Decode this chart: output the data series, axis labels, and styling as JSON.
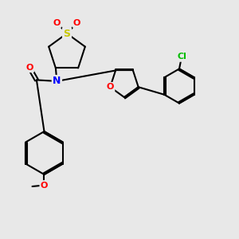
{
  "bg_color": "#e8e8e8",
  "atom_colors": {
    "S": "#c8c800",
    "O": "#ff0000",
    "N": "#0000ff",
    "Cl": "#00bb00",
    "C": "#000000"
  },
  "bond_color": "#000000",
  "bond_lw": 1.5,
  "figsize": [
    3.0,
    3.0
  ],
  "dpi": 100,
  "xlim": [
    0,
    10
  ],
  "ylim": [
    0,
    10
  ]
}
